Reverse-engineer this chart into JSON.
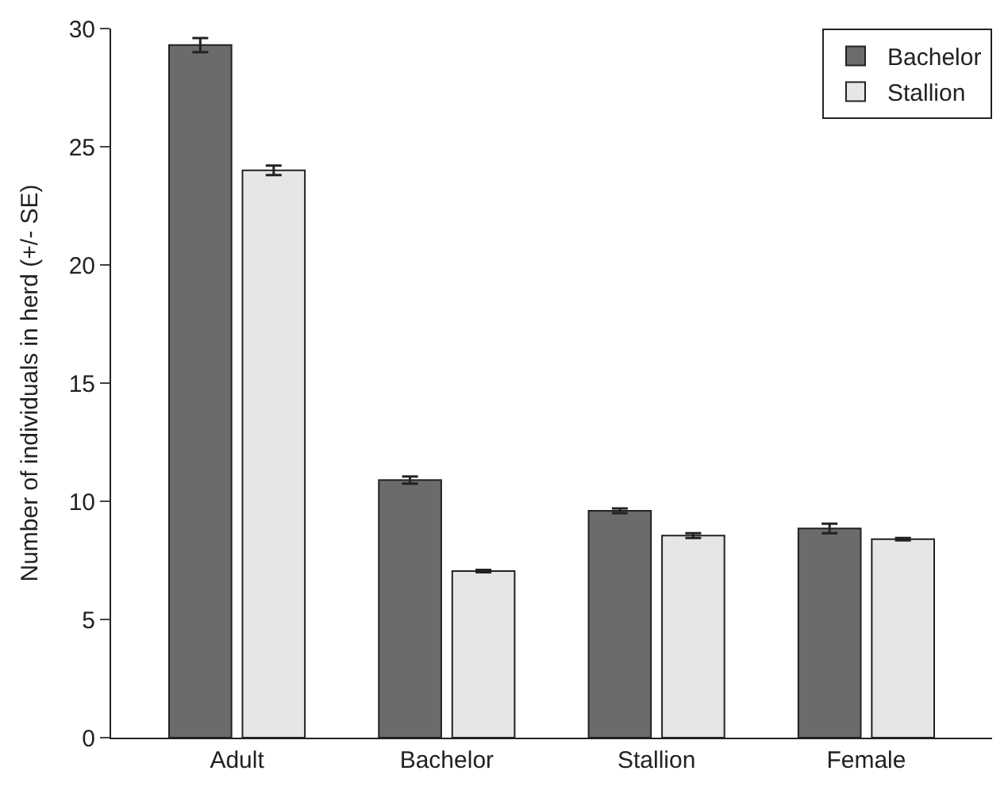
{
  "chart_data": {
    "type": "bar",
    "ylabel": "Number of individuals in herd (+/- SE)",
    "categories": [
      "Adult",
      "Bachelor",
      "Stallion",
      "Female"
    ],
    "series": [
      {
        "name": "Bachelor",
        "color": "#6b6b69",
        "values": [
          29.3,
          10.9,
          9.6,
          8.85
        ],
        "errors": [
          0.3,
          0.15,
          0.1,
          0.2
        ]
      },
      {
        "name": "Stallion",
        "color": "#e5e6e5",
        "values": [
          24.0,
          7.05,
          8.55,
          8.4
        ],
        "errors": [
          0.2,
          0.05,
          0.1,
          0.05
        ]
      }
    ],
    "ylim": [
      0,
      30
    ],
    "yticks": [
      0,
      5,
      10,
      15,
      20,
      25,
      30
    ],
    "legend": "top right"
  }
}
